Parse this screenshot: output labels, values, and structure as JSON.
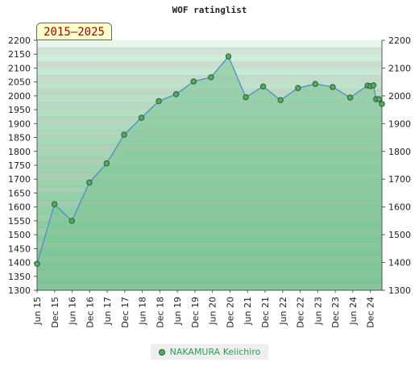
{
  "chart_data": {
    "type": "area",
    "title": "WOF ratinglist",
    "period_label": "2015–2025",
    "xlabel": "",
    "ylabel": "",
    "ylim": [
      1300,
      2200
    ],
    "y_ticks": [
      1300,
      1350,
      1400,
      1450,
      1500,
      1550,
      1600,
      1650,
      1700,
      1750,
      1800,
      1850,
      1900,
      1950,
      2000,
      2050,
      2100,
      2150,
      2200
    ],
    "y_ticks_right": [
      1300,
      1400,
      1500,
      1600,
      1700,
      1800,
      1900,
      2000,
      2100,
      2200
    ],
    "x_tick_labels": [
      "Jun 15",
      "Dec 15",
      "Jun 16",
      "Dec 16",
      "Jun 17",
      "Dec 17",
      "Jun 18",
      "Dec 18",
      "Jun 19",
      "Dec 19",
      "Jun 20",
      "Dec 20",
      "Jun 21",
      "Dec 21",
      "Jun 22",
      "Dec 22",
      "Jun 23",
      "Dec 23",
      "Jun 24",
      "Dec 24"
    ],
    "legend_position": "bottom-center",
    "colors": {
      "fill_light": "#e8f6ec",
      "fill_dark": "#7cc593",
      "line": "#4a90c8",
      "marker": "#55aa66",
      "marker_edge": "#2c5e33",
      "legend_text": "#2e9e55"
    },
    "series": [
      {
        "name": "NAKAMURA Keiichiro",
        "points": [
          {
            "x": "2015-06",
            "y": 1395
          },
          {
            "x": "2015-12",
            "y": 1610
          },
          {
            "x": "2016-06",
            "y": 1550
          },
          {
            "x": "2016-12",
            "y": 1688
          },
          {
            "x": "2017-06",
            "y": 1757
          },
          {
            "x": "2017-12",
            "y": 1860
          },
          {
            "x": "2018-06",
            "y": 1921
          },
          {
            "x": "2018-12",
            "y": 1981
          },
          {
            "x": "2019-06",
            "y": 2006
          },
          {
            "x": "2019-12",
            "y": 2052
          },
          {
            "x": "2020-06",
            "y": 2067
          },
          {
            "x": "2020-12",
            "y": 2142
          },
          {
            "x": "2021-06",
            "y": 1995
          },
          {
            "x": "2021-12",
            "y": 2034
          },
          {
            "x": "2022-06",
            "y": 1985
          },
          {
            "x": "2022-12",
            "y": 2028
          },
          {
            "x": "2023-06",
            "y": 2043
          },
          {
            "x": "2023-12",
            "y": 2032
          },
          {
            "x": "2024-06",
            "y": 1994
          },
          {
            "x": "2024-12",
            "y": 2037
          },
          {
            "x": "2025-01",
            "y": 2035
          },
          {
            "x": "2025-02",
            "y": 2038
          },
          {
            "x": "2025-03",
            "y": 1988
          },
          {
            "x": "2025-04",
            "y": 1988
          },
          {
            "x": "2025-05",
            "y": 1971
          }
        ]
      }
    ]
  }
}
